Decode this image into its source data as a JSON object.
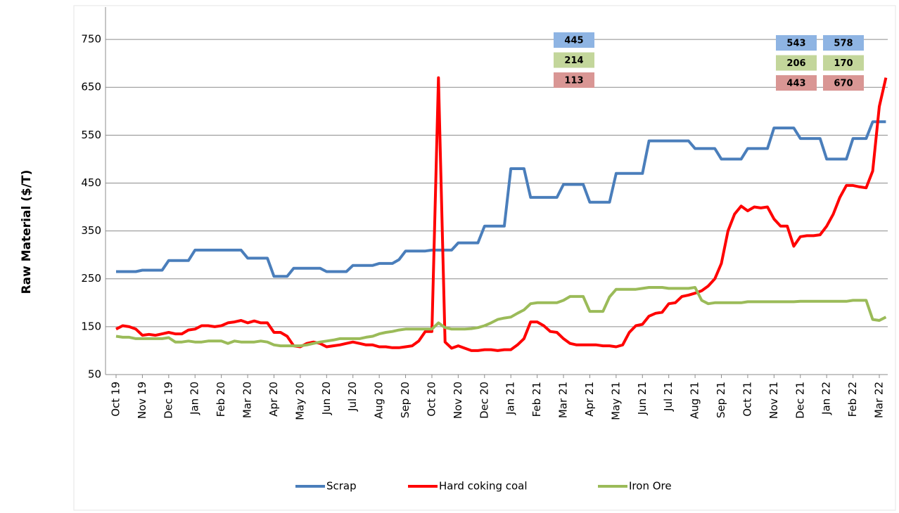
{
  "chart_data": {
    "type": "line",
    "y_label": "Raw Material ($/T)",
    "categories": [
      "Oct 19",
      null,
      null,
      null,
      "Nov 19",
      null,
      null,
      null,
      "Dec 19",
      null,
      null,
      null,
      "Jan 20",
      null,
      null,
      null,
      "Feb 20",
      null,
      null,
      null,
      "Mar 20",
      null,
      null,
      null,
      "Apr 20",
      null,
      null,
      null,
      "May 20",
      null,
      null,
      null,
      "Jun 20",
      null,
      null,
      null,
      "Jul 20",
      null,
      null,
      null,
      "Aug 20",
      null,
      null,
      null,
      "Sep 20",
      null,
      null,
      null,
      "Oct 20",
      null,
      null,
      null,
      "Nov 20",
      null,
      null,
      null,
      "Dec 20",
      null,
      null,
      null,
      "Jan 21",
      null,
      null,
      null,
      "Feb 21",
      null,
      null,
      null,
      "Mar 21",
      null,
      null,
      null,
      "Apr 21",
      null,
      null,
      null,
      "May 21",
      null,
      null,
      null,
      "Jun 21",
      null,
      null,
      null,
      "Jul 21",
      null,
      null,
      null,
      "Aug 21",
      null,
      null,
      null,
      "Sep 21",
      null,
      null,
      null,
      "Oct 21",
      null,
      null,
      null,
      "Nov 21",
      null,
      null,
      null,
      "Dec 21",
      null,
      null,
      null,
      "Jan 22",
      null,
      null,
      null,
      "Feb 22",
      null,
      null,
      null,
      "Mar 22",
      null
    ],
    "series": [
      {
        "name": "Scrap",
        "color": "#4a7ebb",
        "values": [
          265,
          265,
          265,
          265,
          268,
          268,
          268,
          268,
          288,
          288,
          288,
          288,
          310,
          310,
          310,
          310,
          310,
          310,
          310,
          310,
          293,
          293,
          293,
          293,
          255,
          255,
          255,
          272,
          272,
          272,
          272,
          272,
          265,
          265,
          265,
          265,
          278,
          278,
          278,
          278,
          282,
          282,
          282,
          290,
          308,
          308,
          308,
          308,
          310,
          310,
          310,
          310,
          325,
          325,
          325,
          325,
          360,
          360,
          360,
          360,
          480,
          480,
          480,
          420,
          420,
          420,
          420,
          420,
          447,
          447,
          447,
          447,
          410,
          410,
          410,
          410,
          470,
          470,
          470,
          470,
          470,
          538,
          538,
          538,
          538,
          538,
          538,
          538,
          522,
          522,
          522,
          522,
          500,
          500,
          500,
          500,
          522,
          522,
          522,
          522,
          565,
          565,
          565,
          565,
          543,
          543,
          543,
          543,
          500,
          500,
          500,
          500,
          543,
          543,
          543,
          578,
          578,
          578
        ]
      },
      {
        "name": "Hard coking coal",
        "color": "#ff0000",
        "values": [
          145,
          152,
          150,
          145,
          132,
          134,
          132,
          135,
          138,
          135,
          135,
          143,
          145,
          152,
          152,
          150,
          152,
          158,
          160,
          163,
          158,
          162,
          158,
          158,
          138,
          138,
          130,
          110,
          108,
          115,
          118,
          115,
          108,
          110,
          112,
          115,
          118,
          115,
          112,
          112,
          108,
          108,
          106,
          106,
          108,
          110,
          120,
          140,
          140,
          670,
          118,
          105,
          110,
          105,
          100,
          100,
          102,
          102,
          100,
          102,
          102,
          112,
          125,
          160,
          160,
          152,
          140,
          138,
          125,
          115,
          112,
          112,
          112,
          112,
          110,
          110,
          108,
          112,
          138,
          152,
          155,
          172,
          178,
          180,
          198,
          200,
          213,
          216,
          220,
          225,
          235,
          250,
          282,
          350,
          385,
          402,
          392,
          400,
          398,
          400,
          375,
          360,
          360,
          318,
          338,
          340,
          340,
          342,
          360,
          385,
          420,
          445,
          445,
          442,
          440,
          475,
          610,
          670
        ]
      },
      {
        "name": "Iron Ore",
        "color": "#9bbb59",
        "values": [
          130,
          128,
          128,
          125,
          125,
          125,
          125,
          125,
          127,
          118,
          118,
          120,
          118,
          118,
          120,
          120,
          120,
          115,
          120,
          118,
          118,
          118,
          120,
          118,
          112,
          110,
          110,
          110,
          110,
          112,
          115,
          118,
          120,
          122,
          125,
          125,
          125,
          125,
          128,
          130,
          135,
          138,
          140,
          143,
          145,
          145,
          145,
          145,
          145,
          158,
          148,
          145,
          145,
          145,
          146,
          148,
          152,
          158,
          165,
          168,
          170,
          178,
          185,
          198,
          200,
          200,
          200,
          200,
          205,
          213,
          213,
          213,
          182,
          182,
          182,
          212,
          228,
          228,
          228,
          228,
          230,
          232,
          232,
          232,
          230,
          230,
          230,
          230,
          232,
          205,
          198,
          200,
          200,
          200,
          200,
          200,
          202,
          202,
          202,
          202,
          202,
          202,
          202,
          202,
          203,
          203,
          203,
          203,
          203,
          203,
          203,
          203,
          205,
          205,
          205,
          165,
          163,
          170
        ]
      }
    ],
    "ylim": [
      50,
      800
    ],
    "yticks": [
      50,
      150,
      250,
      350,
      450,
      550,
      650,
      750
    ],
    "grid": true,
    "legend": "bottom",
    "annotations": [
      [
        "445",
        "214",
        "113"
      ],
      [
        "543",
        "206",
        "443"
      ],
      [
        "578",
        "170",
        "670"
      ]
    ],
    "annotation_colors": [
      "#8eb4e3",
      "#c3d69b",
      "#d99694"
    ]
  }
}
